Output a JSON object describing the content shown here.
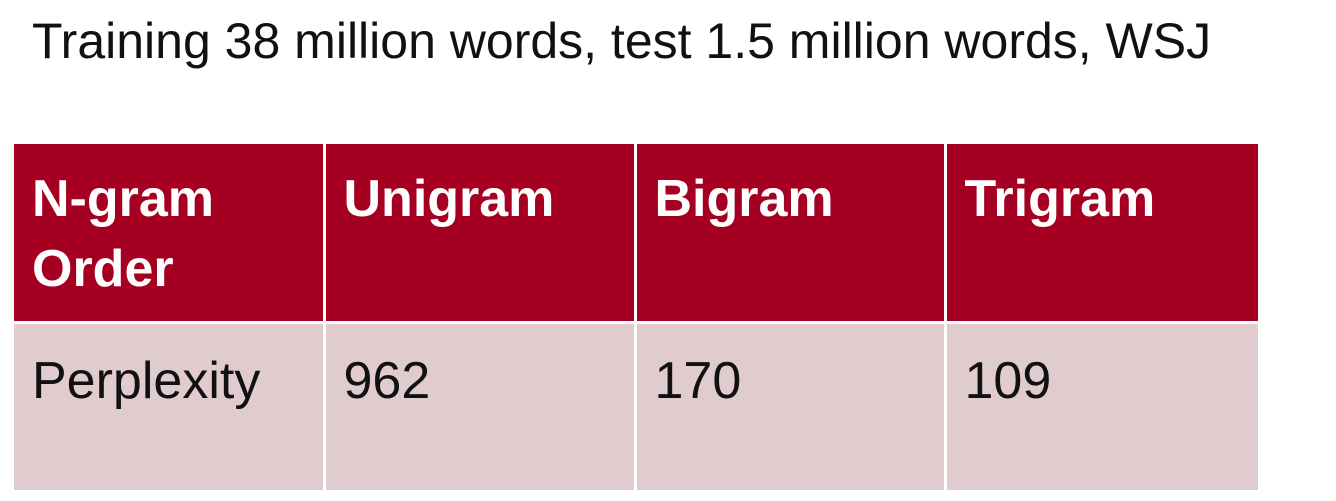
{
  "subtitle": "Training 38 million words, test 1.5 million words, WSJ",
  "table": {
    "headers": [
      "N-gram Order",
      "Unigram",
      "Bigram",
      "Trigram"
    ],
    "rows": [
      [
        "Perplexity",
        "962",
        "170",
        "109"
      ]
    ]
  },
  "colors": {
    "header_bg": "#a50021",
    "header_text": "#ffffff",
    "row_bg": "#e0cbcf",
    "row_text": "#111111"
  }
}
